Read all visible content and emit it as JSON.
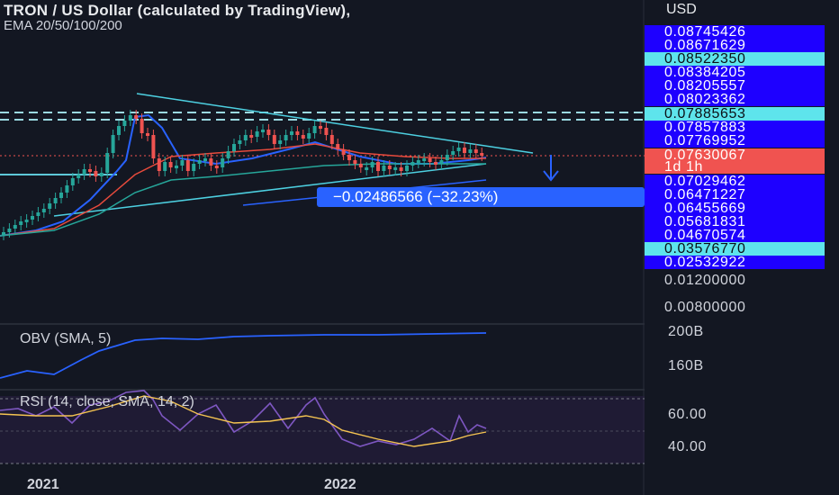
{
  "header": {
    "title": "TRON / US Dollar (calculated by TradingView),",
    "indicator": "EMA 20/50/100/200"
  },
  "price_axis": {
    "currency": "USD",
    "labels": [
      {
        "text": "0.08745426",
        "style": "blue"
      },
      {
        "text": "0.08671629",
        "style": "blue"
      },
      {
        "text": "0.08522350",
        "style": "cyan"
      },
      {
        "text": "0.08384205",
        "style": "blue"
      },
      {
        "text": "0.08205557",
        "style": "blue"
      },
      {
        "text": "0.08023362",
        "style": "blue"
      },
      {
        "text": "0.07885653",
        "style": "cyan"
      },
      {
        "text": "0.07857883",
        "style": "blue"
      },
      {
        "text": "0.07769952",
        "style": "blue"
      },
      {
        "text": "0.07630067",
        "style": "red"
      },
      {
        "text": "1d 1h",
        "style": "red"
      },
      {
        "text": "0.07029462",
        "style": "blue"
      },
      {
        "text": "0.06471227",
        "style": "blue"
      },
      {
        "text": "0.06455669",
        "style": "blue"
      },
      {
        "text": "0.05681831",
        "style": "blue"
      },
      {
        "text": "0.04670574",
        "style": "blue"
      },
      {
        "text": "0.03576770",
        "style": "cyan"
      },
      {
        "text": "0.02532922",
        "style": "blue"
      },
      {
        "text": "0.01200000",
        "style": "plain"
      },
      {
        "text": "0.00800000",
        "style": "plain"
      }
    ]
  },
  "measure_callout": "−0.02486566 (−32.23%)",
  "obv_pane": {
    "label": "OBV (SMA, 5)",
    "ticks": [
      "200B",
      "160B"
    ]
  },
  "rsi_pane": {
    "label": "RSI (14, close, SMA, 14, 2)",
    "ticks": [
      "60.00",
      "40.00"
    ]
  },
  "time_axis": [
    "2021",
    "2022"
  ],
  "colors": {
    "background": "#131722",
    "up": "#26a69a",
    "down": "#ef5350",
    "trendline": "#4dd0e1",
    "ema": "#2962ff",
    "price_line": "#f05350"
  }
}
